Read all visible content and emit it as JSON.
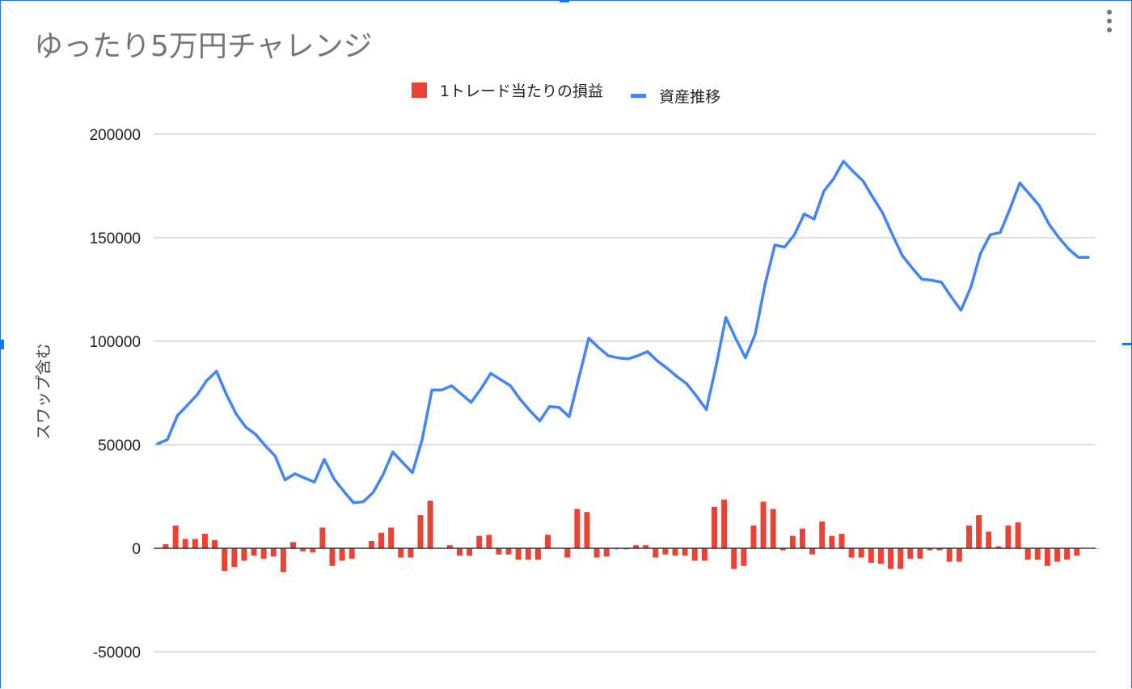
{
  "colors": {
    "bar": "#ea4335",
    "line": "#4285f4",
    "grid": "#cccccc",
    "zero": "#333333",
    "accent": "#1a73e8"
  },
  "menu_icon": "more-vert-icon",
  "chart_data": {
    "type": "bar+line",
    "title": "ゆったり5万円チャレンジ",
    "ylabel": "スワップ含む",
    "xlabel": "",
    "ylim": [
      -50000,
      200000
    ],
    "yticks": [
      -50000,
      0,
      50000,
      100000,
      150000,
      200000
    ],
    "ytick_labels": [
      "-50000",
      "0",
      "50000",
      "100000",
      "150000",
      "200000"
    ],
    "grid": true,
    "legend_position": "top",
    "x": [
      1,
      2,
      3,
      4,
      5,
      6,
      7,
      8,
      9,
      10,
      11,
      12,
      13,
      14,
      15,
      16,
      17,
      18,
      19,
      20,
      21,
      22,
      23,
      24,
      25,
      26,
      27,
      28,
      29,
      30,
      31,
      32,
      33,
      34,
      35,
      36,
      37,
      38,
      39,
      40,
      41,
      42,
      43,
      44,
      45,
      46,
      47,
      48,
      49,
      50,
      51,
      52,
      53,
      54,
      55,
      56,
      57,
      58,
      59,
      60,
      61,
      62,
      63,
      64,
      65,
      66,
      67,
      68,
      69,
      70,
      71,
      72,
      73,
      74,
      75,
      76,
      77,
      78,
      79,
      80,
      81,
      82,
      83,
      84,
      85,
      86,
      87,
      88,
      89,
      90,
      91,
      92,
      93,
      94,
      95,
      96
    ],
    "series": [
      {
        "name": "1トレード当たりの損益",
        "kind": "bar",
        "values": [
          2000,
          11000,
          4500,
          4500,
          7000,
          4000,
          -11000,
          -9000,
          -6000,
          -3500,
          -5000,
          -4000,
          -11500,
          3000,
          -1500,
          -2000,
          10000,
          -8500,
          -6000,
          -5000,
          0,
          3500,
          7500,
          10000,
          -4500,
          -4500,
          16000,
          23000,
          0,
          1500,
          -3500,
          -3500,
          6000,
          6500,
          -3000,
          -3000,
          -5500,
          -5500,
          -5500,
          6500,
          0,
          -4500,
          19000,
          17500,
          -4500,
          -4000,
          -500,
          -500,
          1500,
          1500,
          -4500,
          -3000,
          -3500,
          -3500,
          -6000,
          -6000,
          20000,
          23500,
          -10000,
          -8500,
          11000,
          22500,
          19000,
          -1000,
          6000,
          9500,
          -3000,
          13000,
          6000,
          7000,
          -4500,
          -4500,
          -7000,
          -7500,
          -10000,
          -10000,
          -5000,
          -5000,
          -1000,
          -1000,
          -6500,
          -6500,
          11000,
          16000,
          8000,
          1000,
          11000,
          12500,
          -5500,
          -5500,
          -8500,
          -6500,
          -5500,
          -3500,
          0,
          0
        ],
        "note": "values estimated from axis"
      },
      {
        "name": "資産推移",
        "kind": "line",
        "values": [
          50500,
          52500,
          64000,
          69000,
          74000,
          81000,
          85500,
          74500,
          65000,
          58500,
          55000,
          49500,
          44500,
          33000,
          36000,
          34000,
          32000,
          43000,
          33500,
          27500,
          22000,
          22500,
          27000,
          35500,
          46500,
          41500,
          36500,
          52500,
          76500,
          76500,
          78500,
          74500,
          70500,
          77000,
          84500,
          81500,
          78500,
          72000,
          66500,
          61500,
          68500,
          68000,
          63500,
          82500,
          101500,
          97000,
          93000,
          92000,
          91500,
          93000,
          95000,
          90500,
          87000,
          83000,
          79500,
          73500,
          67000,
          88000,
          111500,
          101500,
          92000,
          103500,
          127500,
          146500,
          145500,
          151500,
          161500,
          159000,
          172500,
          178500,
          187000,
          182000,
          177500,
          169500,
          162000,
          151500,
          141500,
          135500,
          130000,
          129500,
          128500,
          121500,
          115000,
          126000,
          142500,
          151500,
          152500,
          164000,
          176500,
          171000,
          165500,
          156500,
          150000,
          144500,
          140500,
          140500
        ],
        "note": "values estimated from axis"
      }
    ]
  }
}
